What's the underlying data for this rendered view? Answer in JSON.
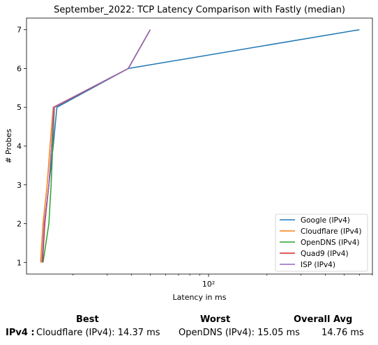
{
  "chart_data": {
    "type": "line",
    "title": "September_2022: TCP Latency Comparison with Fastly (median)",
    "xlabel": "Latency in ms",
    "ylabel": "# Probes",
    "xscale": "log",
    "xlim": [
      11.5,
      700
    ],
    "ylim": [
      0.7,
      7.3
    ],
    "yticks": [
      1,
      2,
      3,
      4,
      5,
      6,
      7
    ],
    "xticks": [
      {
        "value": 100,
        "label": "10²"
      }
    ],
    "grid": false,
    "legend_position": "lower-right",
    "series": [
      {
        "name": "Google (IPv4)",
        "color": "#1f77b4",
        "points": [
          [
            13.9,
            1
          ],
          [
            14.2,
            2
          ],
          [
            15.0,
            3
          ],
          [
            15.8,
            4
          ],
          [
            16.5,
            5
          ],
          [
            38.5,
            6
          ],
          [
            600,
            7
          ]
        ]
      },
      {
        "name": "Cloudflare (IPv4)",
        "color": "#ff7f0e",
        "points": [
          [
            13.6,
            1
          ],
          [
            14.0,
            2
          ],
          [
            14.7,
            3
          ],
          [
            15.2,
            4
          ],
          [
            15.8,
            5
          ],
          [
            38.5,
            6
          ],
          [
            50,
            7
          ]
        ]
      },
      {
        "name": "OpenDNS (IPv4)",
        "color": "#2ca02c",
        "points": [
          [
            14.0,
            1
          ],
          [
            15.0,
            2
          ],
          [
            15.4,
            3
          ],
          [
            15.7,
            4
          ],
          [
            16.0,
            5
          ],
          [
            38.5,
            6
          ],
          [
            50,
            7
          ]
        ]
      },
      {
        "name": "Quad9 (IPv4)",
        "color": "#d62728",
        "points": [
          [
            13.9,
            1
          ],
          [
            14.3,
            2
          ],
          [
            15.0,
            3
          ],
          [
            15.5,
            4
          ],
          [
            16.0,
            5
          ],
          [
            38.5,
            6
          ],
          [
            50,
            7
          ]
        ]
      },
      {
        "name": "ISP (IPv4)",
        "color": "#9467bd",
        "points": [
          [
            13.8,
            1
          ],
          [
            14.2,
            2
          ],
          [
            15.0,
            3
          ],
          [
            15.5,
            4
          ],
          [
            15.9,
            5
          ],
          [
            38.5,
            6
          ],
          [
            50,
            7
          ]
        ]
      }
    ]
  },
  "summary": {
    "headers": {
      "best": "Best",
      "worst": "Worst",
      "avg": "Overall Avg"
    },
    "row_label": "IPv4 :",
    "best": "Cloudflare (IPv4): 14.37 ms",
    "worst": "OpenDNS (IPv4): 15.05 ms",
    "avg": "14.76 ms"
  }
}
